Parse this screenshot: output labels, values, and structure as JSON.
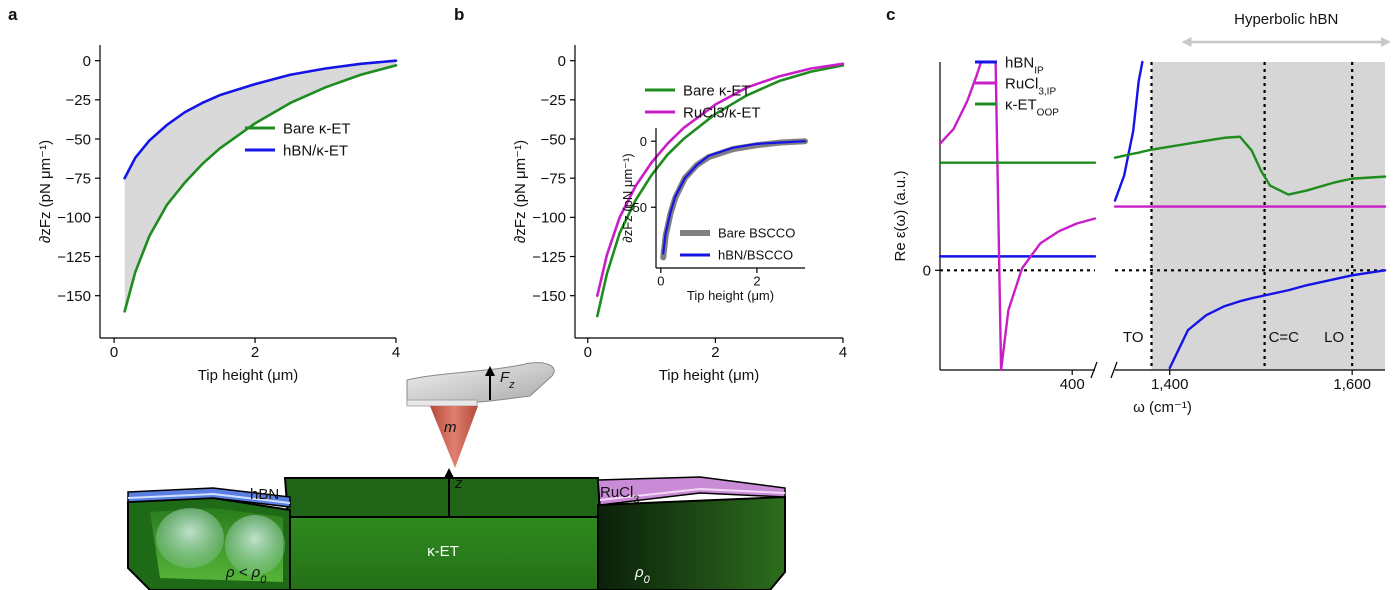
{
  "panel_labels": [
    "a",
    "b",
    "c"
  ],
  "chart_data": [
    {
      "type": "line",
      "x_label": "Tip height (μm)",
      "y_label": "∂zFz (pN μm⁻¹)",
      "xlim": [
        -0.2,
        4
      ],
      "ylim": [
        -177,
        10
      ],
      "xticks": [
        0,
        2,
        4
      ],
      "yticks": [
        0,
        {
          "value": -25,
          "label": "−25"
        },
        {
          "value": -50,
          "label": "−50"
        },
        {
          "value": -75,
          "label": "−75"
        },
        {
          "value": -100,
          "label": "−100"
        },
        {
          "value": -125,
          "label": "−125"
        },
        {
          "value": -150,
          "label": "−150"
        }
      ],
      "x": [
        0.15,
        0.3,
        0.5,
        0.75,
        1,
        1.25,
        1.5,
        2,
        2.5,
        3,
        3.5,
        4
      ],
      "series": [
        {
          "name": "Bare κ-ET",
          "color": "#1e8c1e",
          "values": [
            -160,
            -135,
            -112,
            -92,
            -78,
            -66,
            -56,
            -40,
            -27,
            -17,
            -9,
            -3
          ]
        },
        {
          "name": "hBN/κ-ET",
          "color": "#1414e6",
          "values": [
            -75,
            -62,
            -51,
            -41,
            -33,
            -27,
            -22,
            -15,
            -9,
            -5,
            -2,
            0
          ]
        }
      ],
      "fill_between": "#d9d9d9",
      "legend": "center right"
    },
    {
      "type": "line",
      "x_label": "Tip height (μm)",
      "y_label": "∂zFz (pN μm⁻¹)",
      "xlim": [
        -0.2,
        4
      ],
      "ylim": [
        -177,
        10
      ],
      "xticks": [
        0,
        2,
        4
      ],
      "yticks": [
        0,
        {
          "value": -25,
          "label": "−25"
        },
        {
          "value": -50,
          "label": "−50"
        },
        {
          "value": -75,
          "label": "−75"
        },
        {
          "value": -100,
          "label": "−100"
        },
        {
          "value": -125,
          "label": "−125"
        },
        {
          "value": -150,
          "label": "−150"
        }
      ],
      "x": [
        0.15,
        0.3,
        0.5,
        0.75,
        1,
        1.25,
        1.5,
        2,
        2.5,
        3,
        3.5,
        4
      ],
      "series": [
        {
          "name": "Bare κ-ET",
          "color": "#1e8c1e",
          "values": [
            -163,
            -136,
            -110,
            -89,
            -73,
            -60,
            -50,
            -34,
            -22,
            -13,
            -7,
            -3
          ]
        },
        {
          "name": "RuCl3/κ-ET",
          "color": "#c81ec8",
          "values": [
            -150,
            -124,
            -100,
            -80,
            -65,
            -53,
            -43,
            -28,
            -17,
            -10,
            -5,
            -2
          ]
        }
      ],
      "legend": "upper right"
    },
    {
      "type": "line",
      "x_label": "Tip height (μm)",
      "y_label": "∂zFz (pN μm⁻¹)",
      "xlim": [
        -0.1,
        3
      ],
      "ylim": [
        -96,
        10
      ],
      "xticks": [
        0,
        2
      ],
      "yticks": [
        0,
        {
          "value": -50,
          "label": "−50"
        }
      ],
      "x": [
        0.05,
        0.1,
        0.2,
        0.3,
        0.5,
        0.75,
        1,
        1.5,
        2,
        2.5,
        3
      ],
      "series": [
        {
          "name": "Bare BSCCO",
          "color": "#808080",
          "values": [
            -88,
            -72,
            -55,
            -43,
            -28,
            -18,
            -12,
            -6,
            -3,
            -1,
            0
          ]
        },
        {
          "name": "hBN/BSCCO",
          "color": "#1414e6",
          "values": [
            -85,
            -70,
            -54,
            -42,
            -28,
            -18,
            -11,
            -5,
            -2,
            -1,
            0
          ]
        }
      ],
      "legend": "lower right"
    },
    {
      "type": "line",
      "x_label": "ω (cm⁻¹)",
      "y_label": "Re ε(ω) (a.u.)",
      "xlim": [
        255,
        1636
      ],
      "xbreak": [
        425,
        1340
      ],
      "ylim": [
        -1,
        2.09
      ],
      "xticks": [
        400,
        {
          "value": 1400,
          "label": "1,400"
        },
        {
          "value": 1600,
          "label": "1,600"
        }
      ],
      "yticks": [
        0
      ],
      "zero_line": true,
      "shaded_span": [
        1380,
        1636
      ],
      "shaded_color": "#d6d6d6",
      "span_label": "Hyperbolic hBN",
      "vlines": [
        {
          "x": 1380,
          "label": "TO"
        },
        {
          "x": 1504,
          "label": "C=C"
        },
        {
          "x": 1600,
          "label": "LO"
        }
      ],
      "x": [
        255,
        270,
        285,
        295,
        300,
        314,
        316,
        322,
        330,
        345,
        365,
        385,
        405,
        425,
        1340,
        1350,
        1360,
        1366,
        1370,
        1380,
        1400,
        1420,
        1440,
        1460,
        1477,
        1490,
        1500,
        1510,
        1530,
        1550,
        1580,
        1600,
        1636
      ],
      "series": [
        {
          "name": "hBN",
          "name_sub": "IP",
          "color": "#1414e6",
          "values": [
            0.14,
            0.14,
            0.14,
            0.14,
            0.14,
            0.14,
            0.14,
            0.14,
            0.14,
            0.14,
            0.14,
            0.14,
            0.14,
            0.14,
            0.7,
            0.95,
            1.4,
            1.9,
            2.09,
            null,
            -0.98,
            -0.6,
            -0.45,
            -0.36,
            -0.31,
            -0.28,
            -0.26,
            -0.24,
            -0.2,
            -0.15,
            -0.09,
            -0.05,
            0
          ]
        },
        {
          "name": "RuCl",
          "name_sub": "3,IP",
          "color": "#c81ec8",
          "values": [
            1.27,
            1.42,
            1.7,
            1.95,
            2.09,
            null,
            2.09,
            -1,
            -0.4,
            0.02,
            0.27,
            0.39,
            0.47,
            0.52,
            0.64,
            0.64,
            0.64,
            0.64,
            0.64,
            0.64,
            0.64,
            0.64,
            0.64,
            0.64,
            0.64,
            0.64,
            0.64,
            0.64,
            0.64,
            0.64,
            0.64,
            0.64,
            0.64
          ]
        },
        {
          "name": "κ-ET",
          "name_sub": "OOP",
          "color": "#1e8c1e",
          "values": [
            1.08,
            1.08,
            1.08,
            1.08,
            1.08,
            1.08,
            1.08,
            1.08,
            1.08,
            1.08,
            1.08,
            1.08,
            1.08,
            1.08,
            1.13,
            1.15,
            1.17,
            1.18,
            1.19,
            1.21,
            1.24,
            1.27,
            1.3,
            1.33,
            1.34,
            1.2,
            1.0,
            0.85,
            0.76,
            0.8,
            0.88,
            0.92,
            0.94
          ]
        }
      ],
      "legend": "upper left"
    }
  ],
  "schematic": {
    "hbn": "hBN",
    "ruc": {
      "text": "RuCl",
      "sub": "3"
    },
    "ket": "κ-ET",
    "rho_low": {
      "text": "ρ < ρ",
      "sub": "0"
    },
    "rho0": {
      "text": "ρ",
      "sub": "0"
    },
    "m": "m",
    "z": "z",
    "force": {
      "text": "F",
      "sub": "z"
    }
  }
}
